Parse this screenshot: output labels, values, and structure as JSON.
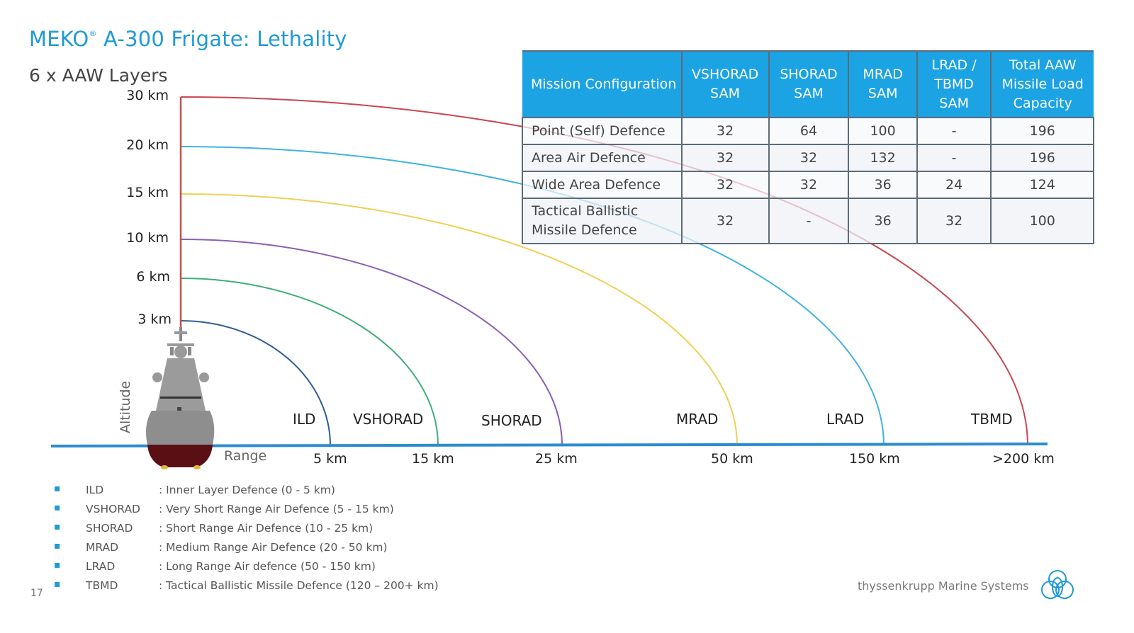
{
  "header": {
    "title_prefix": "MEKO",
    "title_registered": "®",
    "title_rest": " A-300 Frigate: Lethality",
    "subtitle": "6 x AAW Layers"
  },
  "diagram": {
    "altitude_axis_label": "Altitude",
    "range_axis_label": "Range",
    "layers": [
      {
        "name": "ILD",
        "altitude_label": "3 km",
        "range_label": "5 km",
        "altitude_km": 3,
        "range_km": 5,
        "color": "#2f5d96"
      },
      {
        "name": "VSHORAD",
        "altitude_label": "6 km",
        "range_label": "15 km",
        "altitude_km": 6,
        "range_km": 15,
        "color": "#3fae7a"
      },
      {
        "name": "SHORAD",
        "altitude_label": "10 km",
        "range_label": "25 km",
        "altitude_km": 10,
        "range_km": 25,
        "color": "#8a5fb5"
      },
      {
        "name": "MRAD",
        "altitude_label": "15 km",
        "range_label": "50 km",
        "altitude_km": 15,
        "range_km": 50,
        "color": "#f0d054"
      },
      {
        "name": "LRAD",
        "altitude_label": "20 km",
        "range_label": "150 km",
        "altitude_km": 20,
        "range_km": 150,
        "color": "#3fb4e0"
      },
      {
        "name": "TBMD",
        "altitude_label": "30 km",
        "range_label": ">200 km",
        "altitude_km": 30,
        "range_km": 200,
        "color": "#c9474f"
      }
    ],
    "range_line_color": "#2c8ccf",
    "vertical_axis_color": "#c0504d"
  },
  "table": {
    "headers": [
      "Mission Configuration",
      "VSHORAD SAM",
      "SHORAD SAM",
      "MRAD SAM",
      "LRAD / TBMD SAM",
      "Total AAW Missile Load Capacity"
    ],
    "rows": [
      [
        "Point (Self) Defence",
        "32",
        "64",
        "100",
        "-",
        "196"
      ],
      [
        "Area Air Defence",
        "32",
        "32",
        "132",
        "-",
        "196"
      ],
      [
        "Wide Area Defence",
        "32",
        "32",
        "36",
        "24",
        "124"
      ],
      [
        "Tactical Ballistic Missile Defence",
        "32",
        "-",
        "36",
        "32",
        "100"
      ]
    ],
    "header_color": "#1ba3e4"
  },
  "legend": [
    {
      "abbr": "ILD",
      "desc": ": Inner Layer Defence (0 - 5 km)"
    },
    {
      "abbr": "VSHORAD",
      "desc": ": Very Short Range Air Defence (5 - 15 km)"
    },
    {
      "abbr": "SHORAD",
      "desc": ":  Short Range Air Defence (10 - 25 km)"
    },
    {
      "abbr": "MRAD",
      "desc": ":  Medium Range Air Defence (20 - 50 km)"
    },
    {
      "abbr": "LRAD",
      "desc": ":  Long Range Air defence (50 - 150 km)"
    },
    {
      "abbr": "TBMD",
      "desc": ":  Tactical Ballistic  Missile Defence (120 – 200+ km)"
    }
  ],
  "footer": {
    "page_number": "17",
    "brand": "thyssenkrupp  Marine Systems",
    "accent_color": "#1e9ad6"
  }
}
